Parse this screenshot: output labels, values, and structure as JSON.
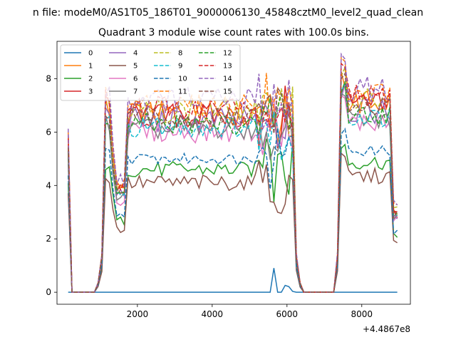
{
  "chart_data": {
    "type": "line",
    "suptitle": "n file: modeM0/AS1T05_186T01_9000006130_45848cztM0_level2_quad_clean",
    "title": "Quadrant 3 module wise count rates with 100.0s bins.",
    "xlabel": "",
    "ylabel": "",
    "x_offset_label": "+4.4867e8",
    "xlim": [
      -150,
      9300
    ],
    "ylim": [
      -0.45,
      9.4
    ],
    "xticks": [
      2000,
      4000,
      6000,
      8000
    ],
    "xtick_labels": [
      "2000",
      "4000",
      "6000",
      "8000"
    ],
    "yticks": [
      0,
      2,
      4,
      6,
      8
    ],
    "ytick_labels": [
      "0",
      "2",
      "4",
      "6",
      "8"
    ],
    "grid": false,
    "legend_position": "top-left",
    "legend_columns": 4,
    "series": [
      {
        "name": "0",
        "color": "#1f77b4",
        "dash": "solid",
        "base": 0,
        "noise": 0
      },
      {
        "name": "1",
        "color": "#ff7f0e",
        "dash": "solid",
        "base": 6.7,
        "noise": 0.5
      },
      {
        "name": "2",
        "color": "#2ca02c",
        "dash": "solid",
        "base": 4.6,
        "noise": 0.3
      },
      {
        "name": "3",
        "color": "#d62728",
        "dash": "solid",
        "base": 6.6,
        "noise": 0.5
      },
      {
        "name": "4",
        "color": "#9467bd",
        "dash": "solid",
        "base": 6.4,
        "noise": 0.5
      },
      {
        "name": "5",
        "color": "#8c564b",
        "dash": "solid",
        "base": 4.1,
        "noise": 0.3
      },
      {
        "name": "6",
        "color": "#e377c2",
        "dash": "solid",
        "base": 6.0,
        "noise": 0.4
      },
      {
        "name": "7",
        "color": "#7f7f7f",
        "dash": "solid",
        "base": 6.1,
        "noise": 0.4
      },
      {
        "name": "8",
        "color": "#bcbd22",
        "dash": "dashed",
        "base": 6.8,
        "noise": 0.45
      },
      {
        "name": "9",
        "color": "#17becf",
        "dash": "dashed",
        "base": 6.2,
        "noise": 0.4
      },
      {
        "name": "10",
        "color": "#1f77b4",
        "dash": "dashed",
        "base": 5.0,
        "noise": 0.2
      },
      {
        "name": "11",
        "color": "#ff7f0e",
        "dash": "dashed",
        "base": 7.0,
        "noise": 0.45
      },
      {
        "name": "12",
        "color": "#2ca02c",
        "dash": "dashed",
        "base": 6.3,
        "noise": 0.4
      },
      {
        "name": "13",
        "color": "#d62728",
        "dash": "dashed",
        "base": 6.9,
        "noise": 0.45
      },
      {
        "name": "14",
        "color": "#9467bd",
        "dash": "dashed",
        "base": 7.2,
        "noise": 0.5
      },
      {
        "name": "15",
        "color": "#8c564b",
        "dash": "dashed",
        "base": 6.5,
        "noise": 0.4
      }
    ]
  }
}
